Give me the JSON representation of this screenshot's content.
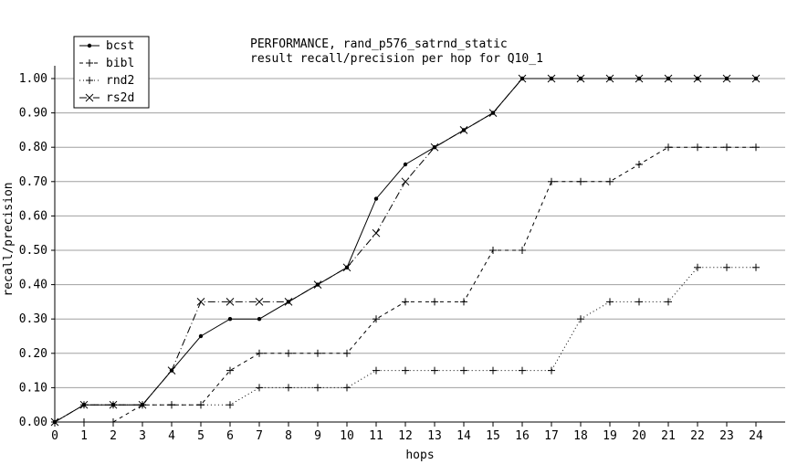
{
  "chart_data": {
    "type": "line",
    "title": "PERFORMANCE, rand_p576_satrnd_static",
    "subtitle": "result recall/precision per hop for Q10_1",
    "xlabel": "hops",
    "ylabel": "recall/precision",
    "xlim": [
      0,
      24
    ],
    "ylim": [
      0,
      1
    ],
    "grid": true,
    "legend_position": "top-left",
    "x": [
      0,
      1,
      2,
      3,
      4,
      5,
      6,
      7,
      8,
      9,
      10,
      11,
      12,
      13,
      14,
      15,
      16,
      17,
      18,
      19,
      20,
      21,
      22,
      23,
      24
    ],
    "x_ticks": [
      "0",
      "1",
      "2",
      "3",
      "4",
      "5",
      "6",
      "7",
      "8",
      "9",
      "10",
      "11",
      "12",
      "13",
      "14",
      "15",
      "16",
      "17",
      "18",
      "19",
      "20",
      "21",
      "22",
      "23",
      "24"
    ],
    "y_ticks": [
      "0.00",
      "0.10",
      "0.20",
      "0.30",
      "0.40",
      "0.50",
      "0.60",
      "0.70",
      "0.80",
      "0.90",
      "1.00"
    ],
    "series": [
      {
        "name": "bcst",
        "marker": "dot",
        "dash": "solid",
        "values": [
          0,
          0.05,
          0.05,
          0.05,
          0.15,
          0.25,
          0.3,
          0.3,
          0.35,
          0.4,
          0.45,
          0.65,
          0.75,
          0.8,
          0.85,
          0.9,
          1.0,
          1.0,
          1.0,
          1.0,
          1.0,
          1.0,
          1.0,
          1.0,
          1.0
        ]
      },
      {
        "name": "bibl",
        "marker": "plus",
        "dash": "dashed",
        "values": [
          0,
          0,
          0,
          0.05,
          0.05,
          0.05,
          0.15,
          0.2,
          0.2,
          0.2,
          0.2,
          0.3,
          0.35,
          0.35,
          0.35,
          0.5,
          0.5,
          0.7,
          0.7,
          0.7,
          0.75,
          0.8,
          0.8,
          0.8,
          0.8
        ]
      },
      {
        "name": "rnd2",
        "marker": "plus",
        "dash": "dotted",
        "values": [
          0,
          0.05,
          0.05,
          0.05,
          0.05,
          0.05,
          0.05,
          0.1,
          0.1,
          0.1,
          0.1,
          0.15,
          0.15,
          0.15,
          0.15,
          0.15,
          0.15,
          0.15,
          0.3,
          0.35,
          0.35,
          0.35,
          0.45,
          0.45,
          0.45
        ]
      },
      {
        "name": "rs2d",
        "marker": "x",
        "dash": "dashdot",
        "values": [
          0,
          0.05,
          0.05,
          0.05,
          0.15,
          0.35,
          0.35,
          0.35,
          0.35,
          0.4,
          0.45,
          0.55,
          0.7,
          0.8,
          0.85,
          0.9,
          1.0,
          1.0,
          1.0,
          1.0,
          1.0,
          1.0,
          1.0,
          1.0,
          1.0
        ]
      }
    ]
  }
}
